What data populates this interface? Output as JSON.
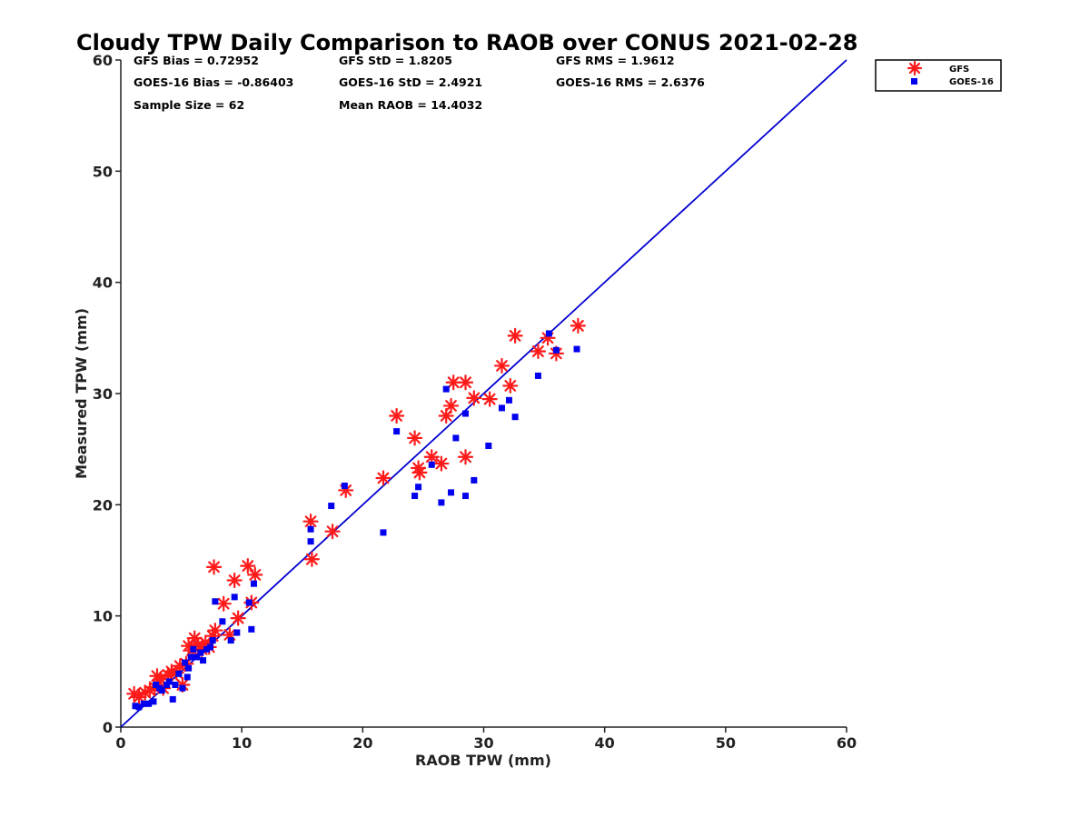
{
  "chart_data": {
    "type": "scatter",
    "title": "Cloudy TPW Daily Comparison to RAOB over CONUS 2021-02-28",
    "xlabel": "RAOB TPW (mm)",
    "ylabel": "Measured TPW (mm)",
    "xlim": [
      0,
      60
    ],
    "ylim": [
      0,
      60
    ],
    "xticks": [
      "0",
      "10",
      "20",
      "30",
      "40",
      "50",
      "60"
    ],
    "yticks": [
      "0",
      "10",
      "20",
      "30",
      "40",
      "50",
      "60"
    ],
    "grid": false,
    "legend_position": "top-right outside",
    "reference_line": {
      "from": [
        0,
        0
      ],
      "to": [
        60,
        60
      ],
      "color": "#0000d0"
    },
    "stats": [
      "GFS Bias = 0.72952",
      "GFS StD = 1.8205",
      "GFS RMS = 1.9612",
      "GOES-16 Bias = -0.86403",
      "GOES-16 StD = 2.4921",
      "GOES-16 RMS = 2.6376",
      "Sample Size = 62",
      "Mean RAOB = 14.4032"
    ],
    "series": [
      {
        "name": "GFS",
        "marker": "asterisk",
        "color": "#ff1a1a",
        "points": [
          [
            1.1,
            3.0
          ],
          [
            1.5,
            2.7
          ],
          [
            2.0,
            3.1
          ],
          [
            2.4,
            3.3
          ],
          [
            2.8,
            3.6
          ],
          [
            3.0,
            4.6
          ],
          [
            3.3,
            4.3
          ],
          [
            3.5,
            3.5
          ],
          [
            3.9,
            4.7
          ],
          [
            4.2,
            5.0
          ],
          [
            4.6,
            4.9
          ],
          [
            4.9,
            5.5
          ],
          [
            5.1,
            3.8
          ],
          [
            5.4,
            5.7
          ],
          [
            5.6,
            7.3
          ],
          [
            5.9,
            6.9
          ],
          [
            6.1,
            8.0
          ],
          [
            6.4,
            7.4
          ],
          [
            6.7,
            7.0
          ],
          [
            7.0,
            7.6
          ],
          [
            7.3,
            7.2
          ],
          [
            7.6,
            8.2
          ],
          [
            7.8,
            8.7
          ],
          [
            7.7,
            14.4
          ],
          [
            8.5,
            11.1
          ],
          [
            9.0,
            8.3
          ],
          [
            9.4,
            13.2
          ],
          [
            9.7,
            9.8
          ],
          [
            10.5,
            14.5
          ],
          [
            10.8,
            11.2
          ],
          [
            11.1,
            13.7
          ],
          [
            15.7,
            18.5
          ],
          [
            15.8,
            15.1
          ],
          [
            17.5,
            17.6
          ],
          [
            18.6,
            21.3
          ],
          [
            21.7,
            22.4
          ],
          [
            22.8,
            28.0
          ],
          [
            24.3,
            26.0
          ],
          [
            24.6,
            23.3
          ],
          [
            24.7,
            22.9
          ],
          [
            25.7,
            24.3
          ],
          [
            26.5,
            23.7
          ],
          [
            26.9,
            28.0
          ],
          [
            27.3,
            28.9
          ],
          [
            27.5,
            31.0
          ],
          [
            28.5,
            31.0
          ],
          [
            28.5,
            24.3
          ],
          [
            29.2,
            29.6
          ],
          [
            30.5,
            29.5
          ],
          [
            31.5,
            32.5
          ],
          [
            32.2,
            30.7
          ],
          [
            32.6,
            35.2
          ],
          [
            34.5,
            33.8
          ],
          [
            35.3,
            35.0
          ],
          [
            36.0,
            33.6
          ],
          [
            37.8,
            36.1
          ]
        ]
      },
      {
        "name": "GOES-16",
        "marker": "square",
        "color": "#0000ee",
        "points": [
          [
            1.2,
            1.9
          ],
          [
            1.5,
            1.8
          ],
          [
            1.9,
            2.1
          ],
          [
            2.3,
            2.1
          ],
          [
            2.7,
            2.3
          ],
          [
            2.9,
            3.8
          ],
          [
            3.2,
            3.5
          ],
          [
            3.4,
            3.3
          ],
          [
            3.8,
            3.8
          ],
          [
            4.0,
            4.1
          ],
          [
            4.3,
            2.5
          ],
          [
            4.5,
            3.8
          ],
          [
            4.8,
            4.8
          ],
          [
            5.1,
            3.5
          ],
          [
            5.3,
            5.8
          ],
          [
            5.5,
            4.5
          ],
          [
            5.6,
            5.3
          ],
          [
            5.8,
            6.3
          ],
          [
            6.0,
            7.0
          ],
          [
            6.3,
            6.3
          ],
          [
            6.6,
            6.7
          ],
          [
            6.8,
            6.0
          ],
          [
            7.1,
            7.0
          ],
          [
            7.4,
            7.2
          ],
          [
            7.6,
            7.8
          ],
          [
            7.8,
            11.3
          ],
          [
            8.4,
            9.5
          ],
          [
            9.1,
            7.8
          ],
          [
            9.4,
            11.7
          ],
          [
            9.6,
            8.5
          ],
          [
            10.6,
            11.2
          ],
          [
            10.8,
            8.8
          ],
          [
            11.0,
            12.9
          ],
          [
            15.7,
            17.8
          ],
          [
            15.7,
            16.7
          ],
          [
            17.4,
            19.9
          ],
          [
            18.5,
            21.7
          ],
          [
            21.7,
            17.5
          ],
          [
            22.8,
            26.6
          ],
          [
            24.3,
            20.8
          ],
          [
            24.6,
            21.6
          ],
          [
            25.7,
            23.6
          ],
          [
            26.5,
            20.2
          ],
          [
            26.9,
            30.4
          ],
          [
            27.3,
            21.1
          ],
          [
            27.7,
            26.0
          ],
          [
            28.5,
            28.2
          ],
          [
            28.5,
            20.8
          ],
          [
            29.2,
            22.2
          ],
          [
            30.4,
            25.3
          ],
          [
            31.5,
            28.7
          ],
          [
            32.1,
            29.4
          ],
          [
            32.6,
            27.9
          ],
          [
            34.5,
            31.6
          ],
          [
            35.4,
            35.4
          ],
          [
            36.0,
            33.9
          ],
          [
            37.7,
            34.0
          ]
        ]
      }
    ]
  }
}
